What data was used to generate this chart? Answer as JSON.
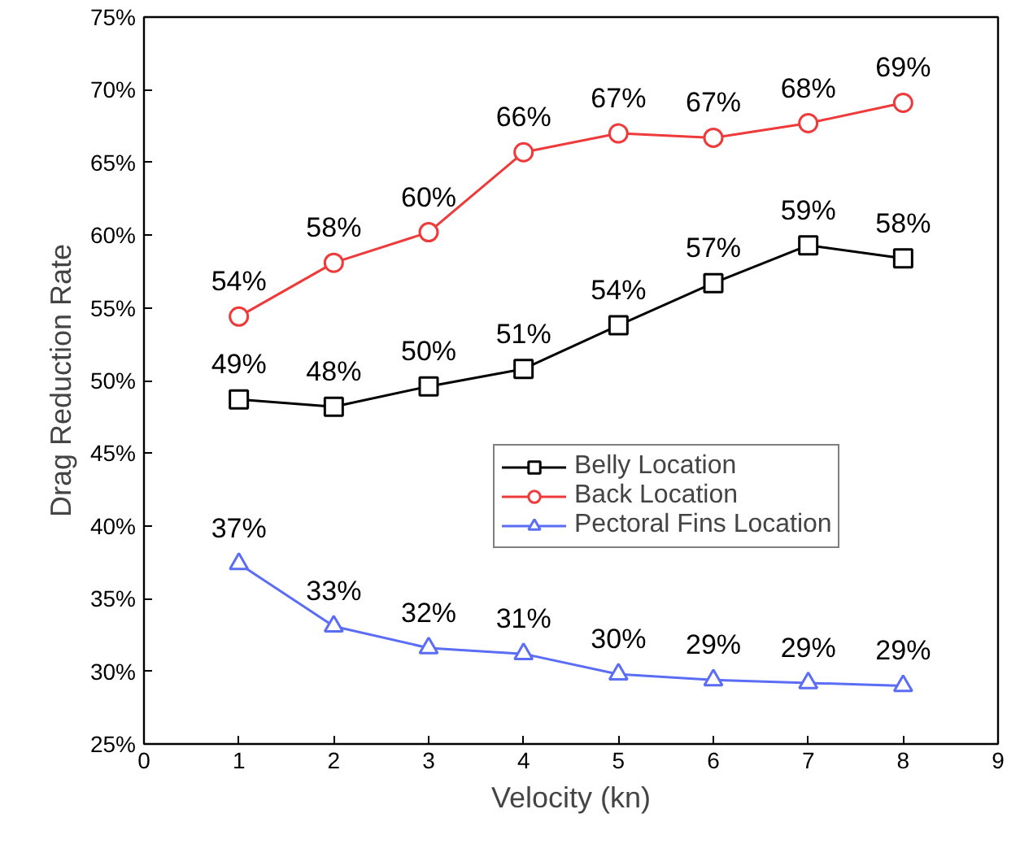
{
  "chart_data": {
    "type": "line",
    "xlabel": "Velocity (kn)",
    "ylabel": "Drag Reduction Rate",
    "xlim": [
      0,
      9
    ],
    "xticks": [
      0,
      1,
      2,
      3,
      4,
      5,
      6,
      7,
      8,
      9
    ],
    "ylim": [
      25,
      75
    ],
    "yticks": [
      {
        "value": 25,
        "label": "25%"
      },
      {
        "value": 30,
        "label": "30%"
      },
      {
        "value": 35,
        "label": "35%"
      },
      {
        "value": 40,
        "label": "40%"
      },
      {
        "value": 45,
        "label": "45%"
      },
      {
        "value": 50,
        "label": "50%"
      },
      {
        "value": 55,
        "label": "55%"
      },
      {
        "value": 60,
        "label": "60%"
      },
      {
        "value": 65,
        "label": "65%"
      },
      {
        "value": 70,
        "label": "70%"
      },
      {
        "value": 75,
        "label": "75%"
      }
    ],
    "x": [
      1,
      2,
      3,
      4,
      5,
      6,
      7,
      8
    ],
    "grid": false,
    "legend": "right",
    "line_style": "solid",
    "series": [
      {
        "name": "Belly Location",
        "color": "#000000",
        "marker": "square",
        "values": [
          48.7,
          48.2,
          49.6,
          50.8,
          53.8,
          56.7,
          59.3,
          58.4
        ],
        "value_labels": [
          "49%",
          "48%",
          "50%",
          "51%",
          "54%",
          "57%",
          "59%",
          "58%"
        ]
      },
      {
        "name": "Back Location",
        "color": "#ee3a3a",
        "marker": "circle",
        "values": [
          54.4,
          58.1,
          60.2,
          65.7,
          67.0,
          66.7,
          67.7,
          69.1
        ],
        "value_labels": [
          "54%",
          "58%",
          "60%",
          "66%",
          "67%",
          "67%",
          "68%",
          "69%"
        ]
      },
      {
        "name": "Pectoral Fins Location",
        "color": "#5b6df5",
        "marker": "triangle",
        "values": [
          37.4,
          33.1,
          31.6,
          31.2,
          29.8,
          29.4,
          29.2,
          29.0
        ],
        "value_labels": [
          "37%",
          "33%",
          "32%",
          "31%",
          "30%",
          "29%",
          "29%",
          "29%"
        ]
      }
    ]
  }
}
